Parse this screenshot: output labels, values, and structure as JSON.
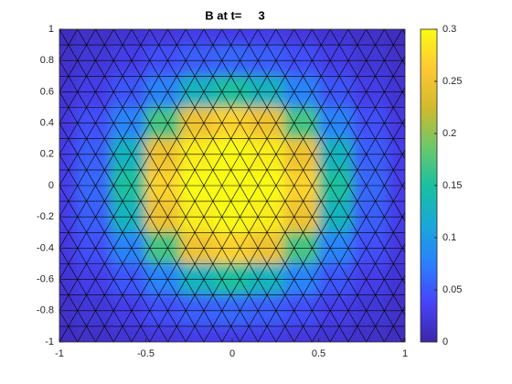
{
  "chart_data": {
    "type": "field",
    "title": "B at t=     3",
    "x": [
      -1,
      -0.8,
      -0.6,
      -0.4,
      -0.2,
      0,
      0.2,
      0.4,
      0.6,
      0.8,
      1
    ],
    "y": [
      1,
      0.8,
      0.6,
      0.4,
      0.2,
      0,
      -0.2,
      -0.4,
      -0.6,
      -0.8,
      -1
    ],
    "z": [
      [
        0.01,
        0.015,
        0.02,
        0.025,
        0.03,
        0.03,
        0.03,
        0.025,
        0.02,
        0.015,
        0.01
      ],
      [
        0.015,
        0.022,
        0.03,
        0.045,
        0.055,
        0.06,
        0.055,
        0.045,
        0.03,
        0.022,
        0.015
      ],
      [
        0.02,
        0.03,
        0.05,
        0.08,
        0.13,
        0.15,
        0.13,
        0.08,
        0.05,
        0.03,
        0.02
      ],
      [
        0.025,
        0.045,
        0.08,
        0.17,
        0.25,
        0.27,
        0.25,
        0.17,
        0.08,
        0.045,
        0.025
      ],
      [
        0.03,
        0.055,
        0.13,
        0.25,
        0.29,
        0.3,
        0.29,
        0.25,
        0.13,
        0.055,
        0.03
      ],
      [
        0.03,
        0.06,
        0.15,
        0.27,
        0.3,
        0.3,
        0.3,
        0.27,
        0.15,
        0.06,
        0.03
      ],
      [
        0.03,
        0.055,
        0.13,
        0.25,
        0.29,
        0.3,
        0.29,
        0.25,
        0.13,
        0.055,
        0.03
      ],
      [
        0.025,
        0.045,
        0.08,
        0.17,
        0.25,
        0.27,
        0.25,
        0.17,
        0.08,
        0.045,
        0.025
      ],
      [
        0.02,
        0.03,
        0.05,
        0.08,
        0.13,
        0.15,
        0.13,
        0.08,
        0.05,
        0.03,
        0.02
      ],
      [
        0.015,
        0.022,
        0.03,
        0.045,
        0.055,
        0.06,
        0.055,
        0.045,
        0.03,
        0.022,
        0.015
      ],
      [
        0.01,
        0.015,
        0.02,
        0.025,
        0.03,
        0.03,
        0.03,
        0.025,
        0.02,
        0.015,
        0.01
      ]
    ],
    "xlim": [
      -1,
      1
    ],
    "xticks": [
      -1,
      -0.5,
      0,
      0.5,
      1
    ],
    "ylim": [
      -1,
      1
    ],
    "yticks": [
      -1,
      -0.8,
      -0.6,
      -0.4,
      -0.2,
      0,
      0.2,
      0.4,
      0.6,
      0.8,
      1
    ],
    "clim": [
      0,
      0.3
    ],
    "cticks": [
      0,
      0.05,
      0.1,
      0.15,
      0.2,
      0.25,
      0.3
    ],
    "colormap": "parula",
    "mesh": true
  }
}
